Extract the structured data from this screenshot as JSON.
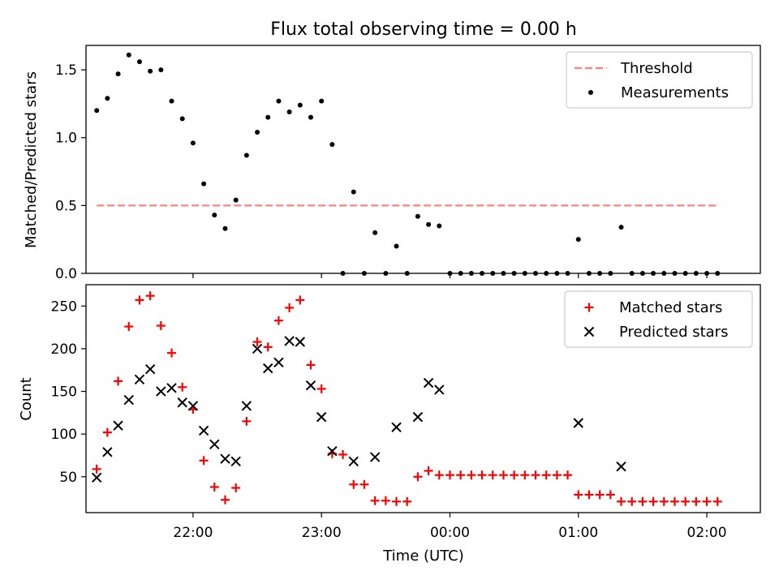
{
  "figure": {
    "title": "Flux total observing time = 0.00 h"
  },
  "chart_data": [
    {
      "type": "scatter",
      "panel": "top",
      "ylabel": "Matched/Predicted stars",
      "xlabel": "",
      "ylim": [
        0,
        1.68
      ],
      "yticks": [
        "0.0",
        "0.5",
        "1.0",
        "1.5"
      ],
      "ytick_values": [
        0,
        0.5,
        1.0,
        1.5
      ],
      "xlim": [
        "21:10",
        "02:25"
      ],
      "legend": {
        "placement": "top-right",
        "entries": [
          "Threshold",
          "Measurements"
        ]
      },
      "series": [
        {
          "name": "Threshold",
          "style": "dashed-line",
          "color": "#ff8080",
          "x": [
            "21:15",
            "02:05"
          ],
          "y": [
            0.5,
            0.5
          ]
        },
        {
          "name": "Measurements",
          "style": "dot",
          "color": "#000000",
          "x": [
            "21:15",
            "21:20",
            "21:25",
            "21:30",
            "21:35",
            "21:40",
            "21:45",
            "21:50",
            "21:55",
            "22:00",
            "22:05",
            "22:10",
            "22:15",
            "22:20",
            "22:25",
            "22:30",
            "22:35",
            "22:40",
            "22:45",
            "22:50",
            "22:55",
            "23:00",
            "23:05",
            "23:10",
            "23:15",
            "23:20",
            "23:25",
            "23:30",
            "23:35",
            "23:40",
            "23:45",
            "23:50",
            "23:55",
            "00:00",
            "00:05",
            "00:10",
            "00:15",
            "00:20",
            "00:25",
            "00:30",
            "00:35",
            "00:40",
            "00:45",
            "00:50",
            "00:55",
            "01:00",
            "01:05",
            "01:10",
            "01:15",
            "01:20",
            "01:25",
            "01:30",
            "01:35",
            "01:40",
            "01:45",
            "01:50",
            "01:55",
            "02:00",
            "02:05"
          ],
          "y": [
            1.2,
            1.29,
            1.47,
            1.61,
            1.56,
            1.49,
            1.5,
            1.27,
            1.14,
            0.96,
            0.66,
            0.43,
            0.33,
            0.54,
            0.87,
            1.04,
            1.15,
            1.27,
            1.19,
            1.24,
            1.15,
            1.27,
            0.95,
            0.0,
            0.6,
            0.0,
            0.3,
            0.0,
            0.2,
            0.0,
            0.42,
            0.36,
            0.35,
            0.0,
            0.0,
            0.0,
            0.0,
            0.0,
            0.0,
            0.0,
            0.0,
            0.0,
            0.0,
            0.0,
            0.0,
            0.25,
            0.0,
            0.0,
            0.0,
            0.34,
            0.0,
            0.0,
            0.0,
            0.0,
            0.0,
            0.0,
            0.0,
            0.0,
            0.0
          ]
        }
      ]
    },
    {
      "type": "scatter",
      "panel": "bottom",
      "ylabel": "Count",
      "xlabel": "Time (UTC)",
      "ylim": [
        8,
        275
      ],
      "yticks": [
        "50",
        "100",
        "150",
        "200",
        "250"
      ],
      "ytick_values": [
        50,
        100,
        150,
        200,
        250
      ],
      "xlim": [
        "21:10",
        "02:25"
      ],
      "xticks": [
        "22:00",
        "23:00",
        "00:00",
        "01:00",
        "02:00"
      ],
      "legend": {
        "placement": "top-right",
        "entries": [
          "Matched stars",
          "Predicted stars"
        ]
      },
      "series": [
        {
          "name": "Matched stars",
          "marker": "plus",
          "color": "#ff0000",
          "x": [
            "21:15",
            "21:20",
            "21:25",
            "21:30",
            "21:35",
            "21:40",
            "21:45",
            "21:50",
            "21:55",
            "22:00",
            "22:05",
            "22:10",
            "22:15",
            "22:20",
            "22:25",
            "22:30",
            "22:35",
            "22:40",
            "22:45",
            "22:50",
            "22:55",
            "23:00",
            "23:05",
            "23:10",
            "23:15",
            "23:20",
            "23:25",
            "23:30",
            "23:35",
            "23:40",
            "23:45",
            "23:50",
            "23:55",
            "00:00",
            "00:05",
            "00:10",
            "00:15",
            "00:20",
            "00:25",
            "00:30",
            "00:35",
            "00:40",
            "00:45",
            "00:50",
            "00:55",
            "01:00",
            "01:05",
            "01:10",
            "01:15",
            "01:20",
            "01:25",
            "01:30",
            "01:35",
            "01:40",
            "01:45",
            "01:50",
            "01:55",
            "02:00",
            "02:05"
          ],
          "y": [
            59,
            102,
            162,
            226,
            257,
            262,
            227,
            195,
            155,
            129,
            69,
            38,
            23,
            37,
            115,
            208,
            202,
            233,
            248,
            257,
            181,
            153,
            77,
            76,
            41,
            41,
            22,
            22,
            21,
            21,
            50,
            57,
            52,
            52,
            52,
            52,
            52,
            52,
            52,
            52,
            52,
            52,
            52,
            52,
            52,
            29,
            29,
            29,
            29,
            21,
            21,
            21,
            21,
            21,
            21,
            21,
            21,
            21,
            21
          ]
        },
        {
          "name": "Predicted stars",
          "marker": "x",
          "color": "#000000",
          "x": [
            "21:15",
            "21:20",
            "21:25",
            "21:30",
            "21:35",
            "21:40",
            "21:45",
            "21:50",
            "21:55",
            "22:00",
            "22:05",
            "22:10",
            "22:15",
            "22:20",
            "22:25",
            "22:30",
            "22:35",
            "22:40",
            "22:45",
            "22:50",
            "22:55",
            "23:00",
            "23:05",
            "23:10",
            "23:15",
            "23:20",
            "23:25",
            "23:30",
            "23:35",
            "23:40",
            "23:45",
            "23:50",
            "23:55",
            "00:00",
            "00:05",
            "00:10",
            "00:15",
            "00:20",
            "00:25",
            "00:30",
            "00:35",
            "00:40",
            "00:45",
            "00:50",
            "00:55",
            "01:00",
            "01:05",
            "01:10",
            "01:15",
            "01:20",
            "01:25",
            "01:30",
            "01:35",
            "01:40",
            "01:45",
            "01:50",
            "01:55",
            "02:00",
            "02:05"
          ],
          "y": [
            49,
            79,
            110,
            140,
            164,
            176,
            150,
            154,
            137,
            133,
            104,
            88,
            71,
            68,
            133,
            200,
            177,
            184,
            209,
            208,
            157,
            120,
            80,
            null,
            68,
            null,
            73,
            null,
            108,
            null,
            120,
            160,
            152,
            null,
            null,
            null,
            null,
            null,
            null,
            null,
            null,
            null,
            null,
            null,
            null,
            113,
            null,
            null,
            null,
            62,
            null,
            null,
            null,
            null,
            null,
            null,
            null,
            null,
            null
          ]
        }
      ]
    }
  ]
}
